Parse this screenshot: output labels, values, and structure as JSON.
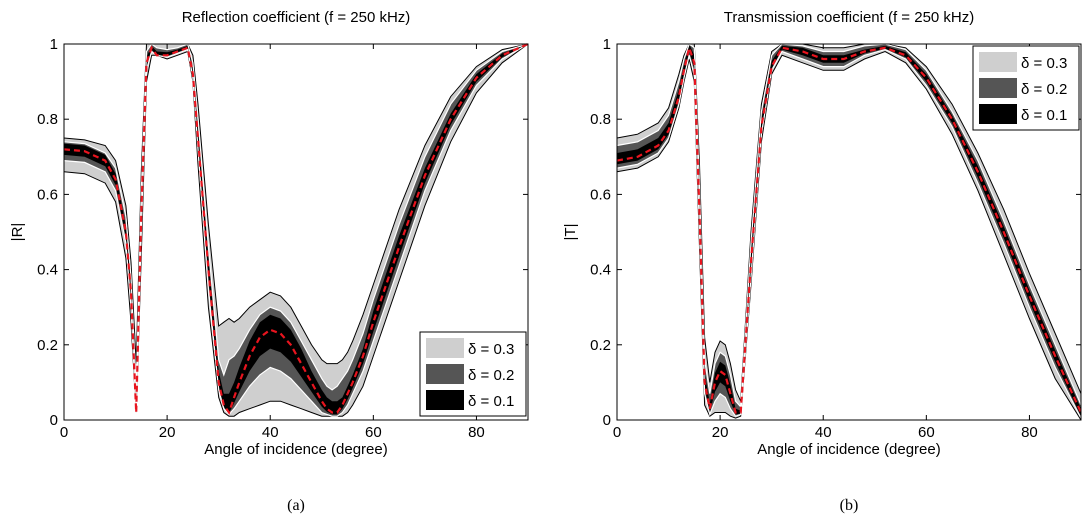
{
  "chart_data": [
    {
      "type": "area",
      "title": "Reflection coefficient    (f = 250 kHz)",
      "xlabel": "Angle of incidence (degree)",
      "ylabel": "|R|",
      "xlim": [
        0,
        90
      ],
      "ylim": [
        0,
        1
      ],
      "xticks": [
        "0",
        "20",
        "40",
        "60",
        "80"
      ],
      "yticks": [
        "0",
        "0.2",
        "0.4",
        "0.6",
        "0.8",
        "1"
      ],
      "legend_position": "bottom-right",
      "caption": "(a)",
      "x": [
        0,
        4,
        8,
        10,
        12,
        13,
        14,
        15,
        16,
        17,
        18,
        20,
        22,
        24,
        25,
        26,
        28,
        30,
        31,
        32,
        33,
        34,
        36,
        38,
        40,
        42,
        44,
        46,
        48,
        50,
        51,
        52,
        53,
        54,
        55,
        56,
        58,
        60,
        65,
        70,
        75,
        80,
        85,
        90
      ],
      "mean": [
        0.72,
        0.715,
        0.69,
        0.64,
        0.5,
        0.34,
        0.02,
        0.55,
        0.95,
        0.99,
        0.97,
        0.97,
        0.98,
        0.99,
        0.92,
        0.75,
        0.4,
        0.1,
        0.04,
        0.02,
        0.06,
        0.1,
        0.17,
        0.22,
        0.24,
        0.23,
        0.2,
        0.15,
        0.1,
        0.05,
        0.03,
        0.02,
        0.02,
        0.04,
        0.07,
        0.1,
        0.17,
        0.26,
        0.46,
        0.65,
        0.8,
        0.91,
        0.97,
        1.0
      ],
      "series": [
        {
          "name": "δ = 0.3",
          "color": "#cfcfcf",
          "lower": [
            0.66,
            0.655,
            0.63,
            0.58,
            0.43,
            0.26,
            0.02,
            0.44,
            0.9,
            0.97,
            0.97,
            0.96,
            0.97,
            0.98,
            0.9,
            0.68,
            0.3,
            0.06,
            0.02,
            0.01,
            0.01,
            0.02,
            0.03,
            0.04,
            0.05,
            0.05,
            0.04,
            0.03,
            0.02,
            0.01,
            0.01,
            0.01,
            0.01,
            0.01,
            0.02,
            0.04,
            0.09,
            0.17,
            0.37,
            0.57,
            0.74,
            0.87,
            0.95,
            1.0
          ],
          "upper": [
            0.75,
            0.745,
            0.73,
            0.69,
            0.57,
            0.42,
            0.15,
            0.66,
            1.0,
            1.0,
            1.0,
            1.0,
            1.0,
            1.0,
            0.97,
            0.84,
            0.52,
            0.25,
            0.26,
            0.27,
            0.26,
            0.27,
            0.3,
            0.32,
            0.34,
            0.33,
            0.3,
            0.25,
            0.2,
            0.16,
            0.15,
            0.15,
            0.15,
            0.16,
            0.18,
            0.21,
            0.28,
            0.36,
            0.56,
            0.73,
            0.86,
            0.94,
            0.985,
            1.0
          ]
        },
        {
          "name": "δ = 0.2",
          "color": "#555555",
          "lower": [
            0.69,
            0.685,
            0.66,
            0.61,
            0.47,
            0.3,
            0.02,
            0.5,
            0.93,
            0.98,
            0.97,
            0.965,
            0.975,
            0.985,
            0.91,
            0.72,
            0.35,
            0.08,
            0.03,
            0.015,
            0.03,
            0.05,
            0.09,
            0.12,
            0.14,
            0.13,
            0.11,
            0.08,
            0.05,
            0.02,
            0.015,
            0.01,
            0.01,
            0.02,
            0.04,
            0.07,
            0.13,
            0.21,
            0.41,
            0.61,
            0.77,
            0.89,
            0.96,
            1.0
          ],
          "upper": [
            0.74,
            0.735,
            0.71,
            0.67,
            0.54,
            0.38,
            0.08,
            0.61,
            0.98,
            1.0,
            0.99,
            0.985,
            0.99,
            1.0,
            0.95,
            0.8,
            0.46,
            0.16,
            0.12,
            0.16,
            0.17,
            0.19,
            0.24,
            0.28,
            0.3,
            0.29,
            0.26,
            0.21,
            0.16,
            0.11,
            0.09,
            0.08,
            0.09,
            0.11,
            0.13,
            0.16,
            0.23,
            0.32,
            0.52,
            0.7,
            0.84,
            0.93,
            0.98,
            1.0
          ]
        },
        {
          "name": "δ = 0.1",
          "color": "#000000",
          "lower": [
            0.705,
            0.7,
            0.675,
            0.625,
            0.485,
            0.32,
            0.02,
            0.52,
            0.94,
            0.985,
            0.97,
            0.968,
            0.978,
            0.988,
            0.915,
            0.735,
            0.375,
            0.09,
            0.035,
            0.018,
            0.045,
            0.075,
            0.13,
            0.17,
            0.19,
            0.18,
            0.155,
            0.115,
            0.075,
            0.035,
            0.022,
            0.015,
            0.015,
            0.03,
            0.055,
            0.085,
            0.15,
            0.235,
            0.435,
            0.63,
            0.785,
            0.9,
            0.965,
            1.0
          ],
          "upper": [
            0.735,
            0.73,
            0.705,
            0.655,
            0.515,
            0.36,
            0.05,
            0.58,
            0.965,
            0.995,
            0.98,
            0.978,
            0.985,
            0.995,
            0.935,
            0.775,
            0.43,
            0.13,
            0.07,
            0.07,
            0.1,
            0.14,
            0.21,
            0.26,
            0.28,
            0.27,
            0.24,
            0.19,
            0.13,
            0.08,
            0.06,
            0.05,
            0.05,
            0.06,
            0.09,
            0.12,
            0.19,
            0.29,
            0.49,
            0.67,
            0.815,
            0.92,
            0.975,
            1.0
          ]
        }
      ]
    },
    {
      "type": "area",
      "title": "Transmission coefficient  (f = 250 kHz)",
      "xlabel": "Angle of incidence (degree)",
      "ylabel": "|T|",
      "xlim": [
        0,
        90
      ],
      "ylim": [
        0,
        1
      ],
      "xticks": [
        "0",
        "20",
        "40",
        "60",
        "80"
      ],
      "yticks": [
        "0",
        "0.2",
        "0.4",
        "0.6",
        "0.8",
        "1"
      ],
      "legend_position": "top-right",
      "caption": "(b)",
      "x": [
        0,
        4,
        8,
        10,
        12,
        13,
        14,
        15,
        16,
        17,
        18,
        19,
        20,
        21,
        22,
        23,
        24,
        26,
        28,
        30,
        32,
        36,
        40,
        44,
        48,
        52,
        56,
        60,
        65,
        70,
        75,
        80,
        85,
        90
      ],
      "mean": [
        0.69,
        0.7,
        0.73,
        0.77,
        0.86,
        0.93,
        0.99,
        0.95,
        0.55,
        0.1,
        0.03,
        0.1,
        0.13,
        0.12,
        0.07,
        0.02,
        0.02,
        0.42,
        0.78,
        0.94,
        0.99,
        0.98,
        0.96,
        0.96,
        0.98,
        0.99,
        0.97,
        0.91,
        0.8,
        0.66,
        0.5,
        0.33,
        0.17,
        0.02
      ],
      "series": [
        {
          "name": "δ = 0.3",
          "color": "#cfcfcf",
          "lower": [
            0.66,
            0.67,
            0.7,
            0.74,
            0.83,
            0.9,
            0.96,
            0.9,
            0.46,
            0.04,
            0.01,
            0.02,
            0.02,
            0.02,
            0.01,
            0.005,
            0.01,
            0.36,
            0.74,
            0.92,
            0.97,
            0.95,
            0.93,
            0.93,
            0.96,
            0.98,
            0.95,
            0.88,
            0.76,
            0.61,
            0.44,
            0.27,
            0.11,
            0.0
          ],
          "upper": [
            0.75,
            0.76,
            0.79,
            0.83,
            0.92,
            0.97,
            1.0,
            1.0,
            0.68,
            0.22,
            0.1,
            0.18,
            0.21,
            0.2,
            0.15,
            0.08,
            0.05,
            0.5,
            0.84,
            0.98,
            1.0,
            1.0,
            0.99,
            0.99,
            1.0,
            1.0,
            0.99,
            0.94,
            0.84,
            0.71,
            0.56,
            0.39,
            0.23,
            0.07
          ]
        },
        {
          "name": "δ = 0.2",
          "color": "#555555",
          "lower": [
            0.67,
            0.68,
            0.71,
            0.75,
            0.84,
            0.91,
            0.97,
            0.92,
            0.5,
            0.07,
            0.015,
            0.05,
            0.07,
            0.06,
            0.03,
            0.01,
            0.015,
            0.38,
            0.76,
            0.93,
            0.98,
            0.96,
            0.94,
            0.94,
            0.97,
            0.985,
            0.96,
            0.89,
            0.78,
            0.63,
            0.47,
            0.3,
            0.14,
            0.005
          ],
          "upper": [
            0.73,
            0.74,
            0.77,
            0.81,
            0.9,
            0.96,
            1.0,
            0.99,
            0.62,
            0.16,
            0.07,
            0.15,
            0.18,
            0.17,
            0.12,
            0.05,
            0.035,
            0.47,
            0.82,
            0.97,
            1.0,
            0.995,
            0.98,
            0.98,
            0.995,
            1.0,
            0.985,
            0.93,
            0.82,
            0.69,
            0.53,
            0.36,
            0.2,
            0.04
          ]
        },
        {
          "name": "δ = 0.1",
          "color": "#000000",
          "lower": [
            0.68,
            0.69,
            0.72,
            0.76,
            0.85,
            0.92,
            0.98,
            0.935,
            0.52,
            0.085,
            0.02,
            0.075,
            0.1,
            0.09,
            0.05,
            0.015,
            0.017,
            0.4,
            0.77,
            0.935,
            0.985,
            0.97,
            0.95,
            0.95,
            0.975,
            0.988,
            0.965,
            0.9,
            0.79,
            0.645,
            0.485,
            0.315,
            0.155,
            0.01
          ],
          "upper": [
            0.71,
            0.72,
            0.75,
            0.79,
            0.88,
            0.945,
            1.0,
            0.97,
            0.585,
            0.125,
            0.045,
            0.125,
            0.155,
            0.145,
            0.095,
            0.03,
            0.025,
            0.445,
            0.8,
            0.955,
            0.995,
            0.99,
            0.97,
            0.97,
            0.985,
            0.995,
            0.978,
            0.92,
            0.81,
            0.675,
            0.515,
            0.345,
            0.185,
            0.03
          ]
        }
      ]
    }
  ]
}
